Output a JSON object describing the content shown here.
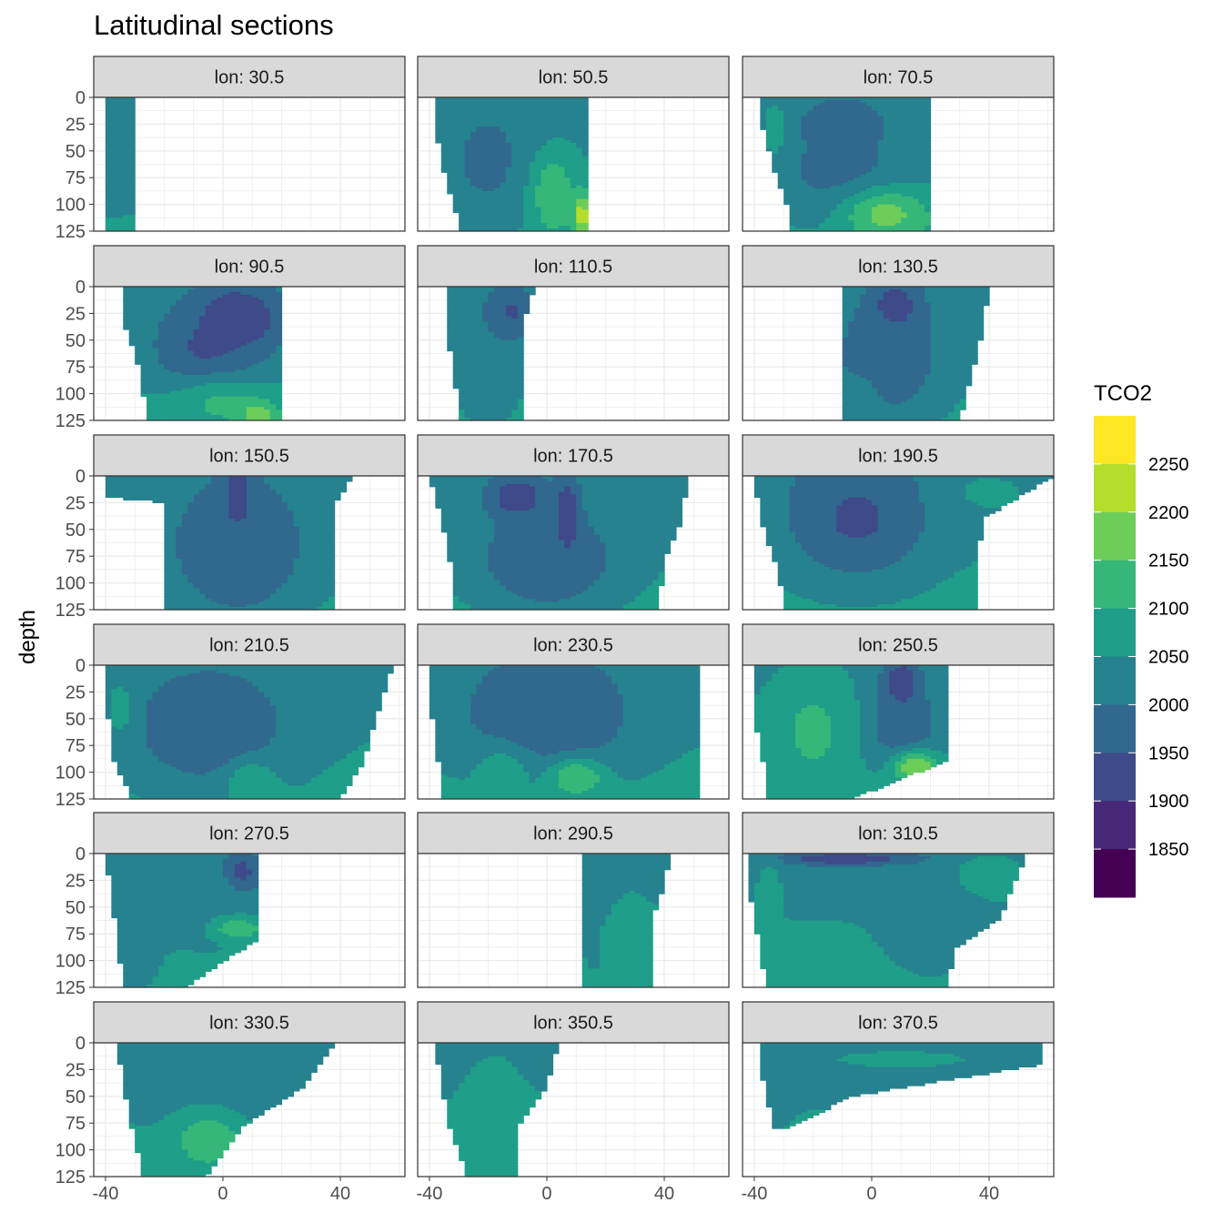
{
  "chart_data": {
    "type": "heatmap",
    "title": "Latitudinal sections",
    "facet_label_prefix": "lon: ",
    "facets": [
      "30.5",
      "50.5",
      "70.5",
      "90.5",
      "110.5",
      "130.5",
      "150.5",
      "170.5",
      "190.5",
      "210.5",
      "230.5",
      "250.5",
      "270.5",
      "290.5",
      "310.5",
      "330.5",
      "350.5",
      "370.5"
    ],
    "ylabel": "depth",
    "xlabel": "",
    "x_ticks": [
      -40,
      0,
      40
    ],
    "y_ticks": [
      0,
      25,
      50,
      75,
      100,
      125
    ],
    "xlim": [
      -44,
      62
    ],
    "ylim": [
      125,
      0
    ],
    "grid": "on",
    "legend": {
      "title": "TCO2",
      "placement": "right",
      "labels": [
        "2250",
        "2200",
        "2150",
        "2100",
        "2050",
        "2000",
        "1950",
        "1900",
        "1850"
      ],
      "bins": [
        1800,
        1850,
        1900,
        1950,
        2000,
        2050,
        2100,
        2150,
        2200,
        2250,
        2300
      ],
      "colors": [
        "#440154",
        "#482878",
        "#3E4A89",
        "#31688E",
        "#26828E",
        "#1F9E89",
        "#35B779",
        "#6DCD59",
        "#B4DE2C",
        "#FDE725"
      ]
    },
    "sections": [
      {
        "lon": "30.5",
        "extent": [
          [
            -40,
            0,
            -31
          ],
          [
            -40,
            125,
            -31
          ]
        ],
        "fields": [
          [
            -38,
            40,
            2000,
            30,
            60
          ]
        ]
      },
      {
        "lon": "50.5",
        "extent": [
          [
            -38,
            0,
            14
          ],
          [
            -38,
            25,
            14
          ],
          [
            -36,
            60,
            14
          ],
          [
            -32,
            100,
            14
          ],
          [
            -29,
            125,
            14
          ]
        ],
        "fields": [
          [
            -20,
            60,
            1990,
            20,
            70
          ],
          [
            2,
            90,
            2140,
            8,
            40
          ],
          [
            12,
            110,
            2230,
            3,
            20
          ]
        ]
      },
      {
        "lon": "70.5",
        "extent": [
          [
            -37,
            0,
            20
          ],
          [
            -37,
            30,
            19
          ],
          [
            -33,
            70,
            19
          ],
          [
            -29,
            100,
            19
          ],
          [
            -28,
            125,
            19
          ]
        ],
        "fields": [
          [
            -10,
            25,
            1930,
            12,
            20
          ],
          [
            -10,
            70,
            1980,
            25,
            50
          ],
          [
            5,
            110,
            2170,
            15,
            25
          ],
          [
            -33,
            30,
            2070,
            4,
            30
          ]
        ]
      },
      {
        "lon": "90.5",
        "extent": [
          [
            -34,
            0,
            20
          ],
          [
            -33,
            40,
            20
          ],
          [
            -28,
            80,
            20
          ],
          [
            -26,
            125,
            19
          ]
        ],
        "fields": [
          [
            5,
            30,
            1880,
            14,
            30
          ],
          [
            -5,
            60,
            1940,
            20,
            45
          ],
          [
            0,
            110,
            2110,
            18,
            25
          ],
          [
            12,
            120,
            2190,
            6,
            12
          ]
        ]
      },
      {
        "lon": "110.5",
        "extent": [
          [
            -34,
            0,
            -4
          ],
          [
            -34,
            40,
            -9
          ],
          [
            -32,
            80,
            -9
          ],
          [
            -29,
            125,
            -9
          ]
        ],
        "fields": [
          [
            -13,
            25,
            1920,
            8,
            25
          ],
          [
            -20,
            70,
            2000,
            10,
            60
          ]
        ]
      },
      {
        "lon": "130.5",
        "extent": [
          [
            -10,
            0,
            40
          ],
          [
            -10,
            50,
            37
          ],
          [
            -10,
            125,
            30
          ]
        ],
        "fields": [
          [
            8,
            20,
            1890,
            8,
            25
          ],
          [
            5,
            70,
            1960,
            20,
            60
          ],
          [
            -4,
            110,
            2040,
            6,
            25
          ]
        ]
      },
      {
        "lon": "150.5",
        "extent": [
          [
            -39,
            0,
            44
          ],
          [
            -39,
            20,
            40
          ],
          [
            -19,
            25,
            37
          ],
          [
            -19,
            125,
            37
          ]
        ],
        "fields": [
          [
            5,
            20,
            1880,
            5,
            30
          ],
          [
            5,
            70,
            1950,
            25,
            70
          ],
          [
            -30,
            15,
            2050,
            10,
            15
          ]
        ]
      },
      {
        "lon": "170.5",
        "extent": [
          [
            -40,
            0,
            48
          ],
          [
            -36,
            40,
            46
          ],
          [
            -33,
            80,
            40
          ],
          [
            -31,
            125,
            38
          ]
        ],
        "fields": [
          [
            -10,
            20,
            1900,
            10,
            20
          ],
          [
            7,
            40,
            1870,
            4,
            35
          ],
          [
            0,
            80,
            1950,
            25,
            50
          ]
        ]
      },
      {
        "lon": "190.5",
        "extent": [
          [
            -40,
            0,
            62
          ],
          [
            -38,
            40,
            38
          ],
          [
            -33,
            80,
            36
          ],
          [
            -29,
            125,
            36
          ]
        ],
        "fields": [
          [
            -5,
            40,
            1940,
            25,
            60
          ],
          [
            40,
            15,
            2060,
            15,
            20
          ]
        ]
      },
      {
        "lon": "210.5",
        "extent": [
          [
            -40,
            0,
            58
          ],
          [
            -39,
            50,
            52
          ],
          [
            -37,
            90,
            48
          ],
          [
            -31,
            125,
            40
          ]
        ],
        "fields": [
          [
            -5,
            60,
            1960,
            30,
            60
          ],
          [
            10,
            110,
            2100,
            8,
            20
          ],
          [
            -35,
            40,
            2070,
            5,
            30
          ]
        ]
      },
      {
        "lon": "230.5",
        "extent": [
          [
            -40,
            0,
            52
          ],
          [
            -39,
            50,
            52
          ],
          [
            -37,
            90,
            52
          ],
          [
            -35,
            125,
            52
          ]
        ],
        "fields": [
          [
            0,
            50,
            1950,
            30,
            60
          ],
          [
            10,
            105,
            2150,
            10,
            18
          ],
          [
            -15,
            100,
            2080,
            10,
            25
          ]
        ]
      },
      {
        "lon": "250.5",
        "extent": [
          [
            -40,
            0,
            25
          ],
          [
            -40,
            50,
            25
          ],
          [
            -37,
            90,
            25
          ],
          [
            -35,
            125,
            -7
          ]
        ],
        "fields": [
          [
            10,
            20,
            1880,
            6,
            25
          ],
          [
            10,
            60,
            1960,
            14,
            40
          ],
          [
            15,
            95,
            2200,
            8,
            15
          ],
          [
            -20,
            60,
            2110,
            15,
            60
          ]
        ]
      },
      {
        "lon": "270.5",
        "extent": [
          [
            -40,
            0,
            12
          ],
          [
            -38,
            40,
            12
          ],
          [
            -36,
            80,
            12
          ],
          [
            -34,
            125,
            -13
          ]
        ],
        "fields": [
          [
            6,
            20,
            1880,
            6,
            20
          ],
          [
            -5,
            50,
            2030,
            18,
            40
          ],
          [
            5,
            70,
            2150,
            8,
            10
          ],
          [
            -30,
            80,
            2010,
            8,
            50
          ]
        ]
      },
      {
        "lon": "290.5",
        "extent": [
          [
            12,
            0,
            42
          ],
          [
            12,
            30,
            40
          ],
          [
            12,
            60,
            36
          ],
          [
            12,
            125,
            36
          ]
        ],
        "fields": [
          [
            18,
            50,
            1990,
            6,
            60
          ],
          [
            25,
            80,
            2080,
            10,
            40
          ]
        ]
      },
      {
        "lon": "310.5",
        "extent": [
          [
            -42,
            0,
            53
          ],
          [
            -42,
            30,
            48
          ],
          [
            -40,
            60,
            44
          ],
          [
            -38,
            90,
            28
          ],
          [
            -36,
            125,
            26
          ]
        ],
        "fields": [
          [
            -8,
            5,
            1900,
            25,
            6
          ],
          [
            20,
            60,
            2010,
            14,
            50
          ],
          [
            -35,
            30,
            2060,
            5,
            30
          ],
          [
            40,
            20,
            2080,
            12,
            20
          ]
        ]
      },
      {
        "lon": "330.5",
        "extent": [
          [
            -36,
            0,
            38
          ],
          [
            -34,
            40,
            28
          ],
          [
            -31,
            80,
            6
          ],
          [
            -27,
            125,
            -6
          ]
        ],
        "fields": [
          [
            -15,
            40,
            2030,
            15,
            50
          ],
          [
            10,
            30,
            2000,
            12,
            40
          ],
          [
            -5,
            90,
            2140,
            12,
            25
          ]
        ]
      },
      {
        "lon": "350.5",
        "extent": [
          [
            -38,
            0,
            4
          ],
          [
            -36,
            40,
            0
          ],
          [
            -33,
            80,
            -10
          ],
          [
            -27,
            125,
            -10
          ]
        ],
        "fields": [
          [
            -5,
            20,
            2000,
            8,
            20
          ],
          [
            -15,
            60,
            2080,
            12,
            50
          ]
        ]
      },
      {
        "lon": "370.5",
        "extent": [
          [
            -38,
            0,
            58
          ],
          [
            -38,
            20,
            58
          ],
          [
            -36,
            50,
            -7
          ],
          [
            -33,
            80,
            -28
          ]
        ],
        "fields": [
          [
            -35,
            40,
            2000,
            6,
            30
          ],
          [
            10,
            15,
            2060,
            30,
            10
          ]
        ]
      }
    ]
  }
}
